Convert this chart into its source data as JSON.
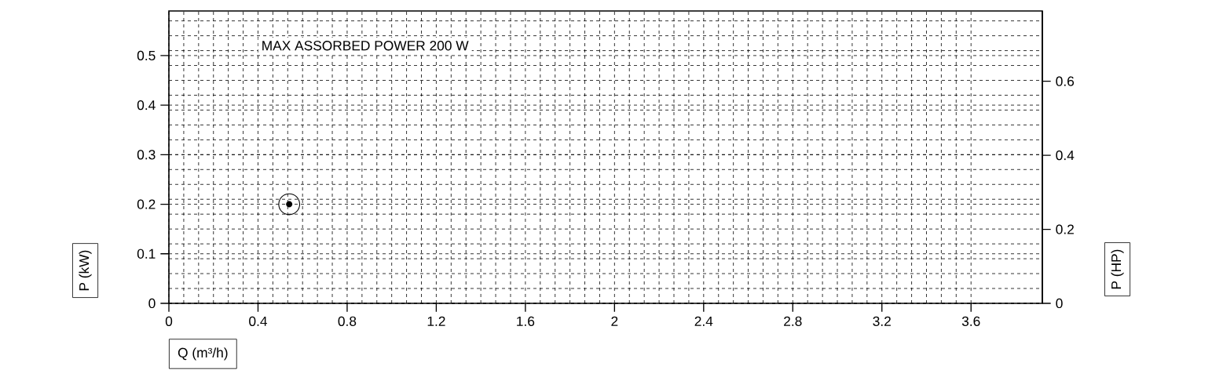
{
  "chart_data": {
    "type": "scatter",
    "x": [
      0.54
    ],
    "values": [
      0.2
    ],
    "color": "#000000",
    "marker": "circle",
    "xlim": [
      0,
      3.92
    ],
    "ylim": [
      0,
      0.59
    ],
    "y2lim": [
      0,
      0.79
    ],
    "xticks": [
      0,
      0.4,
      0.8,
      1.2,
      1.6,
      2,
      2.4,
      2.8,
      3.2,
      3.6
    ],
    "yticks": [
      0,
      0.1,
      0.2,
      0.3,
      0.4,
      0.5
    ],
    "y2ticks": [
      0,
      0.2,
      0.4,
      0.6
    ],
    "xlabel": "Q (m³/h)",
    "ylabel": "P (kW)",
    "y2label": "P (HP)",
    "annotations": [
      "MAX ASSORBED POWER 200 W"
    ],
    "grid": true
  }
}
